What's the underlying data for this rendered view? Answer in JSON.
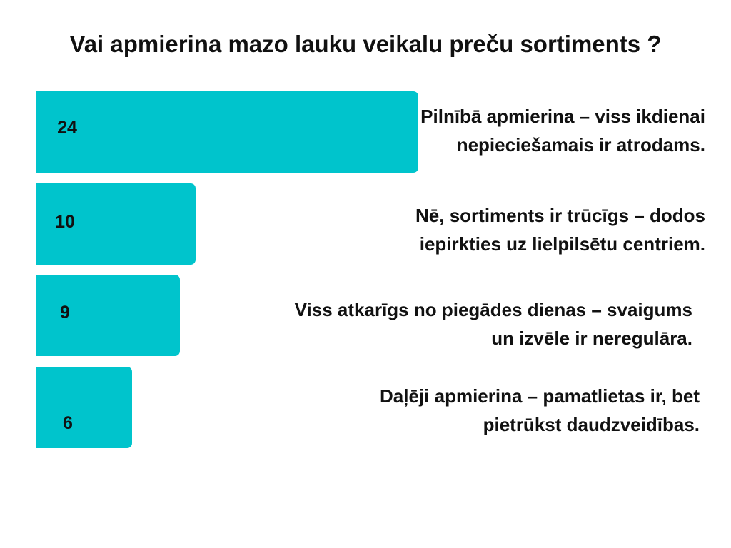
{
  "chart_data": {
    "type": "bar",
    "orientation": "horizontal",
    "title": "Vai apmierina mazo lauku veikalu preču sortiments ?",
    "categories": [
      [
        "Pilnībā apmierina – viss ikdienai",
        "nepieciešamais ir atrodams."
      ],
      [
        "Nē, sortiments ir trūcīgs – dodos",
        "iepirkties uz lielpilsētu centriem."
      ],
      [
        "Viss atkarīgs no piegādes dienas – svaigums",
        "un izvēle ir neregulāra."
      ],
      [
        "Daļēji apmierina – pamatlietas ir, bet",
        "pietrūkst daudzveidības."
      ]
    ],
    "values": [
      24,
      10,
      9,
      6
    ],
    "bar_color": "#00C4CC",
    "grid": false,
    "legend": "none"
  }
}
